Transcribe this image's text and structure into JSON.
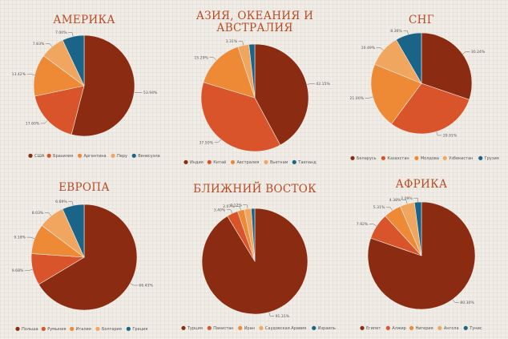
{
  "colors": {
    "background": "#f1ede6",
    "title": "#b84a25",
    "dark_red": "#8b2c12",
    "orange_red": "#d9532b",
    "orange": "#ee8a36",
    "light_orange": "#f1a660",
    "blue": "#1a6488"
  },
  "chart_data": [
    {
      "type": "pie",
      "title": "АМЕРИКА",
      "slices": [
        {
          "label": "США",
          "value": 53.94,
          "pct_label": "53.94%",
          "color": "#8b2c12"
        },
        {
          "label": "Бразилия",
          "value": 17.6,
          "pct_label": "17.60%",
          "color": "#d9532b"
        },
        {
          "label": "Аргентина",
          "value": 13.42,
          "pct_label": "13.42%",
          "color": "#ee8a36"
        },
        {
          "label": "Перу",
          "value": 7.83,
          "pct_label": "7.83%",
          "color": "#f1a660"
        },
        {
          "label": "Венесуэла",
          "value": 7.0,
          "pct_label": "7.00%",
          "color": "#1a6488"
        }
      ]
    },
    {
      "type": "pie",
      "title": "АЗИЯ, ОКЕАНИЯ И АВСТРАЛИЯ",
      "slices": [
        {
          "label": "Индия",
          "value": 42.15,
          "pct_label": "42.15%",
          "color": "#8b2c12"
        },
        {
          "label": "Китай",
          "value": 37.5,
          "pct_label": "37.50%",
          "color": "#d9532b"
        },
        {
          "label": "Австралия",
          "value": 15.29,
          "pct_label": "15.29%",
          "color": "#ee8a36"
        },
        {
          "label": "Вьетнам",
          "value": 3.31,
          "pct_label": "3.31%",
          "color": "#f1a660"
        },
        {
          "label": "Таиланд",
          "value": 1.75,
          "pct_label": "",
          "color": "#1a6488"
        }
      ]
    },
    {
      "type": "pie",
      "title": "СНГ",
      "slices": [
        {
          "label": "Беларусь",
          "value": 30.24,
          "pct_label": "30.24%",
          "color": "#8b2c12"
        },
        {
          "label": "Казахстан",
          "value": 29.91,
          "pct_label": "29.91%",
          "color": "#d9532b"
        },
        {
          "label": "Молдова",
          "value": 21.0,
          "pct_label": "21.00%",
          "color": "#ee8a36"
        },
        {
          "label": "Узбекистан",
          "value": 10.49,
          "pct_label": "10.49%",
          "color": "#f1a660"
        },
        {
          "label": "Грузия",
          "value": 8.36,
          "pct_label": "8.36%",
          "color": "#1a6488"
        }
      ]
    },
    {
      "type": "pie",
      "title": "ЕВРОПА",
      "slices": [
        {
          "label": "Польша",
          "value": 66.43,
          "pct_label": "66.43%",
          "color": "#8b2c12"
        },
        {
          "label": "Румыния",
          "value": 9.68,
          "pct_label": "9.68%",
          "color": "#d9532b"
        },
        {
          "label": "Италия",
          "value": 9.18,
          "pct_label": "9.18%",
          "color": "#ee8a36"
        },
        {
          "label": "Болгария",
          "value": 8.03,
          "pct_label": "8.03%",
          "color": "#f1a660"
        },
        {
          "label": "Греция",
          "value": 6.69,
          "pct_label": "6.69%",
          "color": "#1a6488"
        }
      ]
    },
    {
      "type": "pie",
      "title": "БЛИЖНИЙ ВОСТОК",
      "slices": [
        {
          "label": "Турция",
          "value": 91.31,
          "pct_label": "91.31%",
          "color": "#8b2c12"
        },
        {
          "label": "Пакистан",
          "value": 3.4,
          "pct_label": "3.40%",
          "color": "#d9532b"
        },
        {
          "label": "Иран",
          "value": 2.07,
          "pct_label": "2.07%",
          "color": "#ee8a36"
        },
        {
          "label": "Саудовская Аравия",
          "value": 2.12,
          "pct_label": "2.12%",
          "color": "#f1a660"
        },
        {
          "label": "Израиль",
          "value": 1.1,
          "pct_label": "",
          "color": "#1a6488"
        }
      ]
    },
    {
      "type": "pie",
      "title": "АФРИКА",
      "slices": [
        {
          "label": "Египет",
          "value": 80.3,
          "pct_label": "80.30%",
          "color": "#8b2c12"
        },
        {
          "label": "Алжир",
          "value": 7.92,
          "pct_label": "7.92%",
          "color": "#d9532b"
        },
        {
          "label": "Нигерия",
          "value": 5.31,
          "pct_label": "5.31%",
          "color": "#ee8a36"
        },
        {
          "label": "Ангола",
          "value": 4.38,
          "pct_label": "4.38%",
          "color": "#f1a660"
        },
        {
          "label": "Тунис",
          "value": 2.09,
          "pct_label": "2.09%",
          "color": "#1a6488"
        }
      ]
    }
  ]
}
